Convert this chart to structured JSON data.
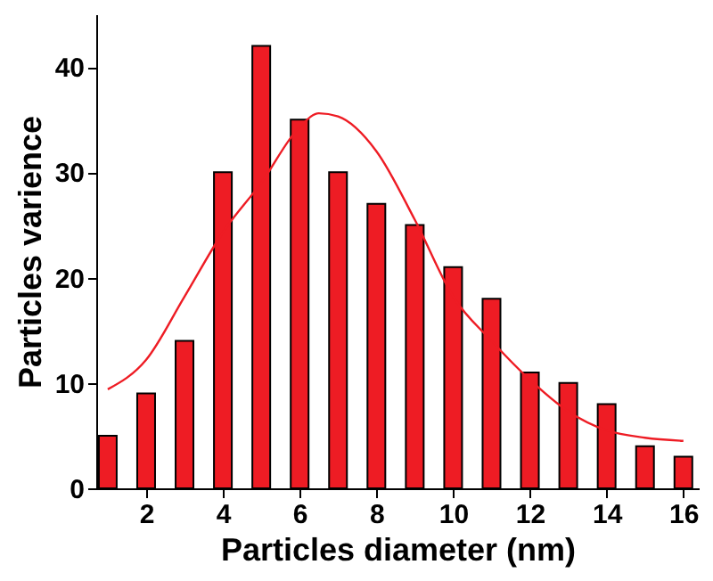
{
  "chart_data": {
    "type": "bar",
    "xlabel": "Particles diameter (nm)",
    "ylabel": "Particles varience",
    "x": [
      1,
      2,
      3,
      4,
      5,
      6,
      7,
      8,
      9,
      10,
      11,
      12,
      13,
      14,
      15,
      16
    ],
    "series": [
      {
        "color": "#ee1c24",
        "values": [
          5,
          9,
          14,
          30,
          42,
          35,
          30,
          27,
          25,
          21,
          18,
          11,
          10,
          8,
          4,
          3
        ]
      },
      {
        "type": "line",
        "color": "#ee1c24",
        "x": [
          1,
          2,
          3,
          4,
          5,
          6,
          6.5,
          7,
          8,
          9,
          10,
          11,
          12,
          13,
          14,
          15,
          16
        ],
        "values": [
          9.4,
          12.2,
          18.2,
          24.3,
          29,
          34.3,
          35.6,
          35.3,
          32,
          25.5,
          18.2,
          14,
          10.3,
          7.3,
          5.5,
          4.8,
          4.5
        ]
      }
    ],
    "xlim": [
      0.7,
      16.4
    ],
    "xticks": [
      2,
      4,
      6,
      8,
      10,
      12,
      14,
      16
    ],
    "ylim": [
      0,
      45
    ],
    "yticks": [
      0,
      10,
      20,
      30,
      40
    ],
    "grid": false,
    "marker": "none",
    "line_style": "solid"
  }
}
